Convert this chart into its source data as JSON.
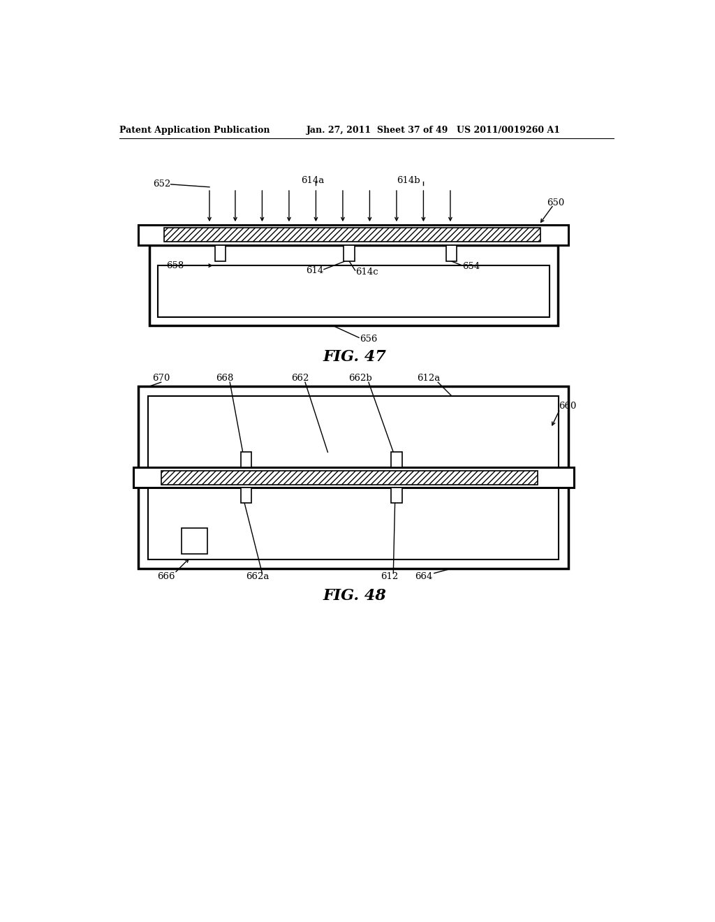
{
  "bg_color": "#ffffff",
  "header_left": "Patent Application Publication",
  "header_mid": "Jan. 27, 2011  Sheet 37 of 49",
  "header_right": "US 2011/0019260 A1",
  "fig47_label": "FIG. 47",
  "fig48_label": "FIG. 48",
  "line_color": "#000000"
}
